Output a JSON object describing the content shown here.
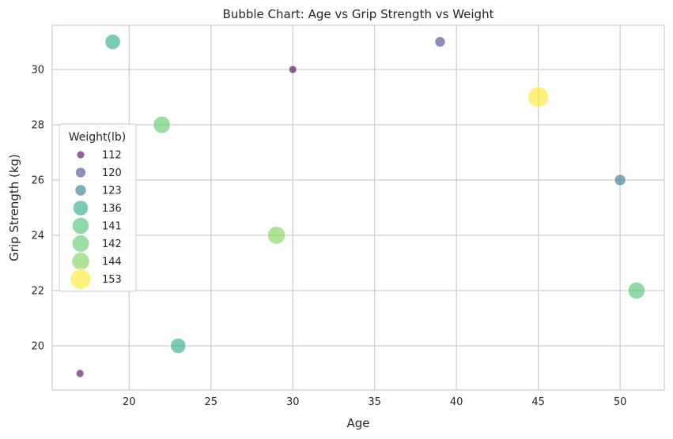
{
  "chart_data": {
    "type": "scatter",
    "title": "Bubble Chart: Age vs Grip Strength vs Weight",
    "xlabel": "Age",
    "ylabel": "Grip Strength (kg)",
    "xlim": [
      15.3,
      52.7
    ],
    "ylim": [
      18.4,
      31.6
    ],
    "xticks": [
      20,
      25,
      30,
      35,
      40,
      45,
      50
    ],
    "yticks": [
      20,
      22,
      24,
      26,
      28,
      30
    ],
    "grid": true,
    "legend": {
      "title": "Weight(lb)",
      "placement": "center-left",
      "entries": [
        {
          "label": "112",
          "weight": 112,
          "color": "#440154"
        },
        {
          "label": "120",
          "weight": 120,
          "color": "#414487"
        },
        {
          "label": "123",
          "weight": 123,
          "color": "#2a788e"
        },
        {
          "label": "136",
          "weight": 136,
          "color": "#22a884"
        },
        {
          "label": "141",
          "weight": 141,
          "color": "#44bf70"
        },
        {
          "label": "142",
          "weight": 142,
          "color": "#59c864"
        },
        {
          "label": "144",
          "weight": 144,
          "color": "#7ad151"
        },
        {
          "label": "153",
          "weight": 153,
          "color": "#fde725"
        }
      ]
    },
    "points": [
      {
        "x": 17,
        "y": 19,
        "weight": 112
      },
      {
        "x": 19,
        "y": 31,
        "weight": 136
      },
      {
        "x": 22,
        "y": 28,
        "weight": 142
      },
      {
        "x": 23,
        "y": 20,
        "weight": 136
      },
      {
        "x": 29,
        "y": 24,
        "weight": 144
      },
      {
        "x": 30,
        "y": 30,
        "weight": 112
      },
      {
        "x": 39,
        "y": 31,
        "weight": 120
      },
      {
        "x": 45,
        "y": 29,
        "weight": 153
      },
      {
        "x": 50,
        "y": 26,
        "weight": 123
      },
      {
        "x": 51,
        "y": 22,
        "weight": 141
      }
    ],
    "marker_alpha": 0.6
  }
}
